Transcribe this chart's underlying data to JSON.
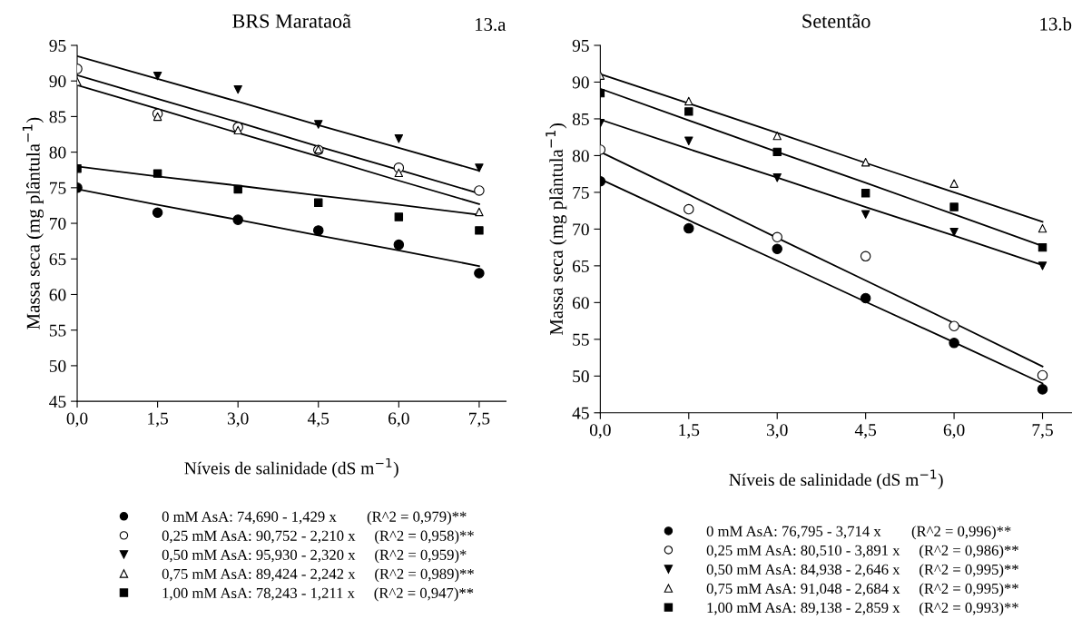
{
  "chart_data": [
    {
      "type": "scatter",
      "title": "BRS Marataoã",
      "annotations": [
        "13.a"
      ],
      "xlabel": "Níveis de salinidade (dS m$^{−1}$)",
      "ylabel": "Massa seca (mg plântula$^{−1}$)",
      "x": [
        0,
        1.5,
        3,
        4.5,
        6,
        7.5
      ],
      "xlim": [
        0,
        8
      ],
      "ylim": [
        45,
        95
      ],
      "xticks": [
        {
          "value": 0,
          "label": "0,0"
        },
        {
          "value": 1.5,
          "label": "1,5"
        },
        {
          "value": 3,
          "label": "3,0"
        },
        {
          "value": 4.5,
          "label": "4,5"
        },
        {
          "value": 6,
          "label": "6,0"
        },
        {
          "value": 7.5,
          "label": "7,5"
        }
      ],
      "yticks": [
        45,
        50,
        55,
        60,
        65,
        70,
        75,
        80,
        85,
        90,
        95
      ],
      "grid": false,
      "legend": "bottom",
      "series": [
        {
          "type": "scatter",
          "name": "0 mM AsA: 74,690 - 1,429 x        (R^2 = 0,979)**",
          "marker": "circle",
          "color": "#000000",
          "values": [
            75,
            71.5,
            70.5,
            69,
            67,
            63
          ]
        },
        {
          "type": "scatter",
          "name": "0,25 mM AsA: 90,752 - 2,210 x     (R^2 = 0,958)**",
          "marker": "circle",
          "color": "#ffffff",
          "values": [
            91.7,
            85.4,
            83.5,
            80.3,
            77.8,
            74.6
          ]
        },
        {
          "type": "scatter",
          "name": "0,50 mM AsA: 95,930 - 2,320 x     (R^2 = 0,959)*",
          "marker": "triangle_down",
          "color": "#000000",
          "values": [
            null,
            90.7,
            88.8,
            83.9,
            81.9,
            77.8
          ]
        },
        {
          "type": "scatter",
          "name": "0,75 mM AsA: 89,424 - 2,242 x     (R^2 = 0,989)**",
          "marker": "triangle",
          "color": "#ffffff",
          "values": [
            89.9,
            85.0,
            83.1,
            80.4,
            77.1,
            71.6
          ]
        },
        {
          "type": "scatter",
          "name": "1,00 mM AsA: 78,243 - 1,211 x     (R^2 = 0,947)**",
          "marker": "square",
          "color": "#000000",
          "values": [
            77.7,
            77.0,
            74.8,
            72.9,
            70.9,
            69.0
          ]
        },
        {
          "type": "line",
          "color": "#000000",
          "values": [
            74.8,
            72.6,
            70.5,
            68.3,
            66.2,
            64.0
          ]
        },
        {
          "type": "line",
          "color": "#000000",
          "values": [
            90.8,
            87.5,
            84.2,
            80.8,
            77.5,
            74.2
          ]
        },
        {
          "type": "line",
          "color": "#000000",
          "values": [
            93.5,
            90.3,
            87.1,
            83.8,
            80.6,
            77.4
          ]
        },
        {
          "type": "line",
          "color": "#000000",
          "values": [
            89.4,
            86.1,
            82.7,
            79.4,
            76.0,
            72.7
          ]
        },
        {
          "type": "line",
          "color": "#000000",
          "values": [
            78.0,
            76.6,
            75.3,
            73.9,
            72.6,
            71.2
          ]
        }
      ]
    },
    {
      "type": "scatter",
      "title": "Setentão",
      "annotations": [
        "13.b"
      ],
      "xlabel": "Níveis de salinidade (dS m$^{−1}$)",
      "ylabel": "Massa seca (mg plântula$^{−1}$)",
      "x": [
        0,
        1.5,
        3,
        4.5,
        6,
        7.5
      ],
      "xlim": [
        0,
        8
      ],
      "ylim": [
        45,
        95
      ],
      "xticks": [
        {
          "value": 0,
          "label": "0,0"
        },
        {
          "value": 1.5,
          "label": "1,5"
        },
        {
          "value": 3,
          "label": "3,0"
        },
        {
          "value": 4.5,
          "label": "4,5"
        },
        {
          "value": 6,
          "label": "6,0"
        },
        {
          "value": 7.5,
          "label": "7,5"
        }
      ],
      "yticks": [
        45,
        50,
        55,
        60,
        65,
        70,
        75,
        80,
        85,
        90,
        95
      ],
      "grid": false,
      "legend": "bottom",
      "series": [
        {
          "type": "scatter",
          "name": "0 mM AsA: 76,795 - 3,714 x        (R^2 = 0,996)**",
          "marker": "circle",
          "color": "#000000",
          "values": [
            76.5,
            70.1,
            67.3,
            60.6,
            54.5,
            48.2
          ]
        },
        {
          "type": "scatter",
          "name": "0,25 mM AsA: 80,510 - 3,891 x     (R^2 = 0,986)**",
          "marker": "circle",
          "color": "#ffffff",
          "values": [
            80.8,
            72.7,
            68.9,
            66.3,
            56.8,
            50.1
          ]
        },
        {
          "type": "scatter",
          "name": "0,50 mM AsA: 84,938 - 2,646 x     (R^2 = 0,995)**",
          "marker": "triangle_down",
          "color": "#000000",
          "values": [
            84.4,
            82.0,
            77.0,
            72.0,
            69.6,
            65.0
          ]
        },
        {
          "type": "scatter",
          "name": "0,75 mM AsA: 91,048 - 2,684 x     (R^2 = 0,995)**",
          "marker": "triangle",
          "color": "#ffffff",
          "values": [
            90.9,
            87.4,
            82.7,
            79.1,
            76.2,
            70.1
          ]
        },
        {
          "type": "scatter",
          "name": "1,00 mM AsA: 89,138 - 2,859 x     (R^2 = 0,993)**",
          "marker": "square",
          "color": "#000000",
          "values": [
            88.5,
            86.0,
            80.5,
            74.9,
            73.0,
            67.5
          ]
        },
        {
          "type": "line",
          "color": "#000000",
          "values": [
            76.8,
            71.2,
            65.7,
            60.1,
            54.6,
            49.0
          ]
        },
        {
          "type": "line",
          "color": "#000000",
          "values": [
            80.5,
            74.7,
            68.8,
            63.0,
            57.2,
            51.3
          ]
        },
        {
          "type": "line",
          "color": "#000000",
          "values": [
            84.9,
            80.9,
            77.0,
            73.0,
            69.1,
            65.1
          ]
        },
        {
          "type": "line",
          "color": "#000000",
          "values": [
            91.1,
            87.1,
            83.1,
            79.0,
            75.0,
            71.0
          ]
        },
        {
          "type": "line",
          "color": "#000000",
          "values": [
            89.1,
            84.8,
            80.5,
            76.3,
            72.0,
            67.7
          ]
        }
      ]
    }
  ]
}
